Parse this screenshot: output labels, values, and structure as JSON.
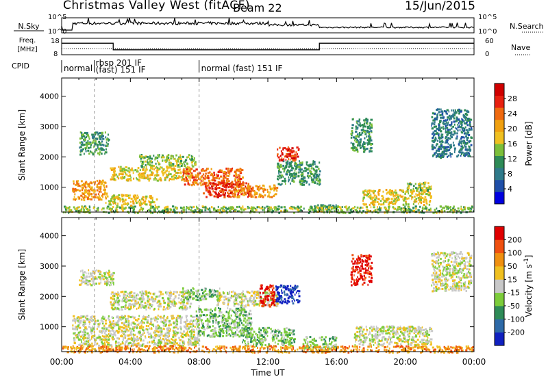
{
  "header": {
    "station": "Christmas Valley West (fitACF)",
    "beam": "Beam 22",
    "date": "15/Jun/2015"
  },
  "top_panels": {
    "nsky_label": "N.Sky",
    "nsearch_label": "N.Search",
    "nsky_ticks": [
      "10^5",
      "10^0"
    ],
    "nsearch_ticks": [
      "10^5",
      "10^0"
    ],
    "freq_label": "Freq.",
    "freq_unit": "[MHz]",
    "freq_ticks": [
      "18",
      "8"
    ],
    "nave_label": "Nave",
    "nave_ticks": [
      "60",
      "0"
    ],
    "cpid_label": "CPID",
    "cpid_segments": [
      {
        "label": "normal",
        "start_hr": 0.0,
        "end_hr": 1.9
      },
      {
        "label": "rbsp 201 IF",
        "start_hr": 1.9,
        "end_hr": 8.0
      },
      {
        "label": "(fast) 151 IF",
        "start_hr": 1.9,
        "end_hr": 8.0
      },
      {
        "label": "normal (fast) 151 IF",
        "start_hr": 8.0,
        "end_hr": 24.0
      }
    ],
    "freq_step": {
      "high_mhz": 15,
      "low_mhz": 11,
      "low_from_hr": 3.0,
      "low_to_hr": 15.0
    }
  },
  "chart_data": [
    {
      "type": "heatmap",
      "name": "power-panel",
      "ylabel": "Slant Range [km]",
      "xlim": [
        0,
        24
      ],
      "ylim": [
        180,
        4600
      ],
      "yticks": [
        "1000",
        "2000",
        "3000",
        "4000"
      ],
      "xticks": [
        "00:00",
        "04:00",
        "08:00",
        "12:00",
        "16:00",
        "20:00",
        "00:00"
      ],
      "colorbar": {
        "label": "Power [dB]",
        "ticks": [
          "28",
          "24",
          "20",
          "16",
          "12",
          "8",
          "4"
        ],
        "colors": [
          "#0000e0",
          "#1f4fa8",
          "#2f7a8a",
          "#2e8b57",
          "#7cbf3a",
          "#f0c020",
          "#f0a010",
          "#f06a10",
          "#e82010",
          "#d00000"
        ]
      },
      "regions": [
        {
          "t0": 0.6,
          "t1": 2.6,
          "r0": 600,
          "r1": 1250,
          "level": 6
        },
        {
          "t0": 2.5,
          "t1": 5.5,
          "r0": 420,
          "r1": 780,
          "level": 5
        },
        {
          "t0": 2.8,
          "t1": 7.5,
          "r0": 1250,
          "r1": 1700,
          "level": 5
        },
        {
          "t0": 4.5,
          "t1": 7.8,
          "r0": 1700,
          "r1": 2100,
          "level": 4
        },
        {
          "t0": 1.0,
          "t1": 2.7,
          "r0": 2100,
          "r1": 2850,
          "level": 3
        },
        {
          "t0": 7.0,
          "t1": 10.5,
          "r0": 1100,
          "r1": 1650,
          "level": 7
        },
        {
          "t0": 8.2,
          "t1": 11.0,
          "r0": 700,
          "r1": 1200,
          "level": 8
        },
        {
          "t0": 10.0,
          "t1": 12.5,
          "r0": 700,
          "r1": 1100,
          "level": 6
        },
        {
          "t0": 12.5,
          "t1": 15.0,
          "r0": 1100,
          "r1": 1900,
          "level": 3
        },
        {
          "t0": 12.5,
          "t1": 13.8,
          "r0": 1900,
          "r1": 2350,
          "level": 8
        },
        {
          "t0": 14.5,
          "t1": 16.0,
          "r0": 200,
          "r1": 450,
          "level": 3
        },
        {
          "t0": 17.5,
          "t1": 21.5,
          "r0": 450,
          "r1": 950,
          "level": 5
        },
        {
          "t0": 20.0,
          "t1": 21.5,
          "r0": 900,
          "r1": 1200,
          "level": 4
        },
        {
          "t0": 16.8,
          "t1": 18.0,
          "r0": 2200,
          "r1": 3300,
          "level": 3
        },
        {
          "t0": 21.5,
          "t1": 23.8,
          "r0": 2000,
          "r1": 3600,
          "level": 2
        },
        {
          "t0": 0.0,
          "t1": 24.0,
          "r0": 180,
          "r1": 400,
          "level": 4
        }
      ]
    },
    {
      "type": "heatmap",
      "name": "velocity-panel",
      "ylabel": "Slant Range [km]",
      "xlabel": "Time UT",
      "xlim": [
        0,
        24
      ],
      "ylim": [
        180,
        4600
      ],
      "yticks": [
        "1000",
        "2000",
        "3000",
        "4000"
      ],
      "xticks": [
        "00:00",
        "04:00",
        "08:00",
        "12:00",
        "16:00",
        "20:00",
        "00:00"
      ],
      "colorbar": {
        "label": "Velocity [m s^-1]",
        "ticks": [
          "200",
          "100",
          "50",
          "15",
          "-15",
          "-50",
          "-100",
          "-200"
        ],
        "colors": [
          "#1020c0",
          "#2e6aa8",
          "#2e8b57",
          "#7ccc3a",
          "#c8c8c8",
          "#f0c020",
          "#f09010",
          "#f05010",
          "#e00000"
        ]
      },
      "regions": [
        {
          "t0": 0.6,
          "t1": 8.0,
          "r0": 400,
          "r1": 1400,
          "level": 4
        },
        {
          "t0": 2.8,
          "t1": 7.5,
          "r0": 1600,
          "r1": 2200,
          "level": 4
        },
        {
          "t0": 1.0,
          "t1": 3.0,
          "r0": 2400,
          "r1": 2900,
          "level": 4
        },
        {
          "t0": 7.8,
          "t1": 11.0,
          "r0": 700,
          "r1": 1650,
          "level": 3
        },
        {
          "t0": 10.5,
          "t1": 13.5,
          "r0": 400,
          "r1": 1000,
          "level": 3
        },
        {
          "t0": 7.0,
          "t1": 9.2,
          "r0": 1900,
          "r1": 2300,
          "level": 3
        },
        {
          "t0": 9.0,
          "t1": 12.5,
          "r0": 1700,
          "r1": 2200,
          "level": 4
        },
        {
          "t0": 12.4,
          "t1": 13.8,
          "r0": 1800,
          "r1": 2400,
          "level": 0
        },
        {
          "t0": 11.5,
          "t1": 12.4,
          "r0": 1700,
          "r1": 2400,
          "level": 8
        },
        {
          "t0": 14.0,
          "t1": 16.0,
          "r0": 250,
          "r1": 700,
          "level": 3
        },
        {
          "t0": 17.0,
          "t1": 21.5,
          "r0": 400,
          "r1": 1050,
          "level": 4
        },
        {
          "t0": 16.8,
          "t1": 18.0,
          "r0": 2400,
          "r1": 3400,
          "level": 8
        },
        {
          "t0": 21.5,
          "t1": 23.8,
          "r0": 2200,
          "r1": 3500,
          "level": 4
        },
        {
          "t0": 0.0,
          "t1": 24.0,
          "r0": 180,
          "r1": 400,
          "level": 6
        }
      ]
    }
  ]
}
